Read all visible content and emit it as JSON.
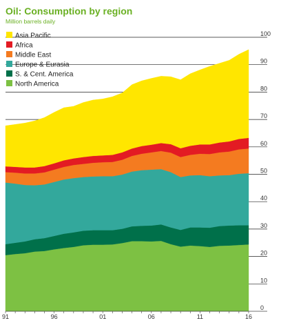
{
  "chart_data": {
    "type": "area",
    "stacked": true,
    "title": "Oil: Consumption by region",
    "subtitle": "Million barrels daily",
    "x": [
      1991,
      1992,
      1993,
      1994,
      1995,
      1996,
      1997,
      1998,
      1999,
      2000,
      2001,
      2002,
      2003,
      2004,
      2005,
      2006,
      2007,
      2008,
      2009,
      2010,
      2011,
      2012,
      2013,
      2014,
      2015,
      2016
    ],
    "x_tick_labels": [
      {
        "x": 1991,
        "label": "91"
      },
      {
        "x": 1996,
        "label": "96"
      },
      {
        "x": 2001,
        "label": "01"
      },
      {
        "x": 2006,
        "label": "06"
      },
      {
        "x": 2011,
        "label": "11"
      },
      {
        "x": 2016,
        "label": "16"
      }
    ],
    "ylim": [
      0,
      100
    ],
    "y_ticks": [
      0,
      10,
      20,
      30,
      40,
      50,
      60,
      70,
      80,
      90,
      100
    ],
    "y_axis_position": "right",
    "grid": "horizontal",
    "legend_position": "top-left",
    "series": [
      {
        "name": "North America",
        "color": "#7dc143",
        "values": [
          20.5,
          20.9,
          21.2,
          21.8,
          22.0,
          22.6,
          23.1,
          23.5,
          24.1,
          24.3,
          24.3,
          24.4,
          24.9,
          25.6,
          25.6,
          25.5,
          25.7,
          24.5,
          23.6,
          24.0,
          23.8,
          23.5,
          23.9,
          24.0,
          24.2,
          24.4
        ]
      },
      {
        "name": "S. & Cent. America",
        "color": "#00704a",
        "values": [
          4.0,
          4.1,
          4.3,
          4.5,
          4.7,
          4.9,
          5.2,
          5.3,
          5.3,
          5.3,
          5.3,
          5.2,
          5.2,
          5.4,
          5.6,
          5.8,
          6.0,
          6.1,
          6.1,
          6.6,
          6.8,
          7.0,
          7.2,
          7.3,
          7.2,
          7.0
        ]
      },
      {
        "name": "Europe & Eurasia",
        "color": "#33a89c",
        "values": [
          22.5,
          21.6,
          20.6,
          19.7,
          19.6,
          19.7,
          19.8,
          19.8,
          19.6,
          19.6,
          19.7,
          19.7,
          19.8,
          20.0,
          20.3,
          20.4,
          20.2,
          20.2,
          19.3,
          19.0,
          19.1,
          18.8,
          18.5,
          18.4,
          18.8,
          19.0
        ]
      },
      {
        "name": "Middle East",
        "color": "#f47b20",
        "values": [
          3.8,
          4.0,
          4.2,
          4.3,
          4.4,
          4.5,
          4.6,
          4.8,
          4.8,
          5.0,
          5.1,
          5.2,
          5.4,
          5.7,
          6.0,
          6.3,
          6.6,
          7.1,
          7.3,
          7.5,
          7.8,
          8.1,
          8.4,
          8.6,
          8.9,
          9.0
        ]
      },
      {
        "name": "Africa",
        "color": "#e31b23",
        "values": [
          2.1,
          2.1,
          2.2,
          2.2,
          2.3,
          2.3,
          2.4,
          2.4,
          2.5,
          2.5,
          2.5,
          2.6,
          2.7,
          2.7,
          2.8,
          2.8,
          2.9,
          3.1,
          3.2,
          3.3,
          3.4,
          3.5,
          3.6,
          3.7,
          3.8,
          3.9
        ]
      },
      {
        "name": "Asia Pacific",
        "color": "#ffe600",
        "values": [
          14.8,
          15.5,
          16.2,
          17.0,
          17.7,
          18.6,
          19.2,
          19.0,
          19.9,
          20.4,
          20.6,
          21.2,
          21.7,
          23.3,
          23.8,
          24.2,
          24.4,
          24.6,
          25.0,
          26.3,
          27.2,
          28.5,
          28.9,
          29.6,
          30.9,
          32.2
        ]
      }
    ]
  },
  "colors": {
    "title": "#6ab023",
    "subtitle": "#6ab023",
    "gridline": "#222222",
    "axis": "#444444"
  }
}
